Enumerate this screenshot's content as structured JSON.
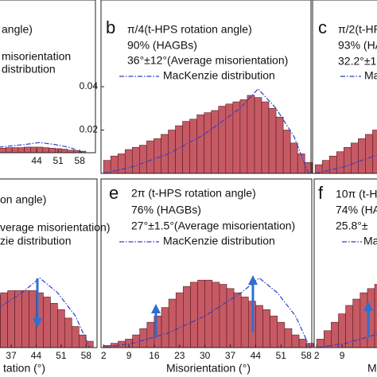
{
  "chart_data": [
    {
      "type": "histogram",
      "lines": [
        "angle)",
        "misorientation"
      ],
      "bins": [
        2,
        4,
        6,
        8,
        10,
        12,
        14,
        16,
        18,
        20,
        22,
        24,
        26,
        28,
        30,
        32,
        34,
        36,
        38,
        40,
        42,
        44,
        46,
        48,
        50,
        52,
        54,
        56,
        58,
        60
      ],
      "values": [
        0.002,
        0.002,
        0.003,
        0.003,
        0.004,
        0.004,
        0.005,
        0.005,
        0.006,
        0.006,
        0.007,
        0.007,
        0.008,
        0.008,
        0.009,
        0.009,
        0.01,
        0.01,
        0.01,
        0.011,
        0.011,
        0.011,
        0.01,
        0.009,
        0.008,
        0.007,
        0.005,
        0.004,
        0.003
      ],
      "color": "#c65a64",
      "xlim": [
        1.3,
        59.5
      ],
      "ylim": [
        0,
        0.3
      ],
      "xticks": [
        44,
        51,
        58
      ],
      "series": [
        {
          "name": "distribution",
          "color": "#2f3fc8",
          "x": [
            2,
            10,
            20,
            30,
            40,
            45,
            50,
            55,
            59
          ],
          "values": [
            0,
            0.002,
            0.005,
            0.01,
            0.016,
            0.02,
            0.016,
            0.01,
            0
          ]
        }
      ]
    },
    {
      "type": "histogram",
      "label": "b",
      "lines": [
        "π/4(t-HPS rotation angle)",
        "90% (HAGBs)",
        "36°±12°(Average misorientation)"
      ],
      "bins": [
        2,
        4,
        6,
        8,
        10,
        12,
        14,
        16,
        18,
        20,
        22,
        24,
        26,
        28,
        30,
        32,
        34,
        36,
        38,
        40,
        42,
        44,
        46,
        48,
        50,
        52,
        54,
        56,
        58,
        60
      ],
      "values": [
        0.006,
        0.008,
        0.009,
        0.011,
        0.012,
        0.013,
        0.015,
        0.016,
        0.018,
        0.02,
        0.022,
        0.024,
        0.025,
        0.027,
        0.028,
        0.029,
        0.031,
        0.032,
        0.033,
        0.034,
        0.036,
        0.035,
        0.033,
        0.03,
        0.026,
        0.02,
        0.014,
        0.009,
        0.005
      ],
      "color": "#c65a64",
      "xlim": [
        1.3,
        59.5
      ],
      "ylim": [
        0,
        0.08
      ],
      "yticks": [
        0.02,
        0.04
      ],
      "series": [
        {
          "name": "MacKenzie distribution",
          "color": "#2f3fc8",
          "x": [
            2,
            10,
            20,
            30,
            40,
            45,
            50,
            55,
            59
          ],
          "values": [
            0,
            0.003,
            0.009,
            0.018,
            0.03,
            0.039,
            0.03,
            0.017,
            0
          ]
        }
      ]
    },
    {
      "type": "histogram",
      "label": "c",
      "lines": [
        "π/2(t-HP",
        "93% (HA",
        "32.2°±1"
      ],
      "bins": [
        2,
        4,
        6,
        8,
        10,
        12,
        14,
        16,
        18,
        20,
        22,
        24,
        26,
        28,
        30,
        32,
        34,
        36,
        38,
        40,
        42,
        44,
        46,
        48,
        50,
        52,
        54,
        56,
        58,
        60
      ],
      "values": [
        0.004,
        0.006,
        0.008,
        0.01,
        0.012,
        0.014,
        0.016,
        0.018,
        0.02,
        0.022,
        0.024,
        0.025,
        0.026,
        0.027,
        0.028,
        0.028,
        0.027,
        0.026,
        0.025,
        0.024,
        0.022,
        0.02,
        0.018,
        0.015,
        0.012,
        0.009,
        0.006,
        0.004,
        0.002
      ],
      "color": "#c65a64",
      "xlim": [
        1.3,
        59.5
      ],
      "ylim": [
        0,
        0.08
      ],
      "series": [
        {
          "name": "Ma",
          "color": "#2f3fc8",
          "x": [
            2,
            10,
            20,
            30,
            40,
            45,
            50,
            55,
            59
          ],
          "values": [
            0,
            0.003,
            0.009,
            0.018,
            0.03,
            0.039,
            0.03,
            0.017,
            0
          ]
        }
      ]
    },
    {
      "type": "histogram",
      "lines": [
        "on angle)",
        "verage misorientation)"
      ],
      "xlabel": "tation (°)",
      "bins": [
        2,
        4,
        6,
        8,
        10,
        12,
        14,
        16,
        18,
        20,
        22,
        24,
        26,
        28,
        30,
        32,
        34,
        36,
        38,
        40,
        42,
        44,
        46,
        48,
        50,
        52,
        54,
        56,
        58,
        60
      ],
      "values": [
        0.003,
        0.005,
        0.007,
        0.009,
        0.011,
        0.013,
        0.015,
        0.017,
        0.018,
        0.019,
        0.02,
        0.021,
        0.022,
        0.023,
        0.024,
        0.025,
        0.026,
        0.027,
        0.027,
        0.027,
        0.027,
        0.026,
        0.024,
        0.021,
        0.018,
        0.014,
        0.01,
        0.006,
        0.003
      ],
      "color": "#c65a64",
      "xlim": [
        1.3,
        59.5
      ],
      "ylim": [
        0,
        0.08
      ],
      "xticks": [
        37,
        44,
        51,
        58
      ],
      "series": [
        {
          "name": "zie distribution",
          "color": "#2f3fc8",
          "x": [
            2,
            10,
            20,
            30,
            40,
            45,
            50,
            55,
            59
          ],
          "values": [
            0,
            0.002,
            0.007,
            0.015,
            0.026,
            0.033,
            0.026,
            0.015,
            0
          ]
        }
      ]
    },
    {
      "type": "histogram",
      "label": "e",
      "lines": [
        "2π (t-HPS rotation angle)",
        "76% (HAGBs)",
        "27°±1.5°(Average misorientation)"
      ],
      "xlabel": "Misorientation (°)",
      "bins": [
        2,
        4,
        6,
        8,
        10,
        12,
        14,
        16,
        18,
        20,
        22,
        24,
        26,
        28,
        30,
        32,
        34,
        36,
        38,
        40,
        42,
        44,
        46,
        48,
        50,
        52,
        54,
        56,
        58,
        60
      ],
      "values": [
        0.001,
        0.002,
        0.003,
        0.004,
        0.006,
        0.009,
        0.012,
        0.015,
        0.019,
        0.023,
        0.026,
        0.029,
        0.031,
        0.032,
        0.032,
        0.031,
        0.03,
        0.028,
        0.026,
        0.024,
        0.022,
        0.02,
        0.018,
        0.015,
        0.012,
        0.009,
        0.006,
        0.004,
        0.002
      ],
      "color": "#c65a64",
      "xlim": [
        1.3,
        59.5
      ],
      "ylim": [
        0,
        0.08
      ],
      "xticks": [
        2,
        9,
        16,
        23,
        30,
        37,
        44,
        51,
        58
      ],
      "series": [
        {
          "name": "MacKenzie distribution",
          "color": "#2f3fc8",
          "x": [
            2,
            10,
            20,
            30,
            40,
            45,
            50,
            55,
            59
          ],
          "values": [
            0,
            0.002,
            0.007,
            0.015,
            0.026,
            0.033,
            0.026,
            0.015,
            0
          ]
        }
      ]
    },
    {
      "type": "histogram",
      "label": "f",
      "lines": [
        "10π (t-H",
        "74% (HA",
        "25.8°±"
      ],
      "xlabel": "M",
      "bins": [
        2,
        4,
        6,
        8,
        10,
        12,
        14,
        16,
        18,
        20,
        22,
        24,
        26,
        28,
        30,
        32,
        34,
        36,
        38,
        40,
        42,
        44,
        46,
        48,
        50,
        52,
        54,
        56,
        58,
        60
      ],
      "values": [
        0.004,
        0.008,
        0.012,
        0.016,
        0.02,
        0.023,
        0.026,
        0.028,
        0.03,
        0.031,
        0.031,
        0.03,
        0.029,
        0.028,
        0.026,
        0.024,
        0.022,
        0.02,
        0.018,
        0.016,
        0.014,
        0.012,
        0.01,
        0.008,
        0.006,
        0.005,
        0.004,
        0.003,
        0.002
      ],
      "color": "#c65a64",
      "xlim": [
        1.3,
        59.5
      ],
      "ylim": [
        0,
        0.08
      ],
      "xticks": [
        2,
        9
      ],
      "series": [
        {
          "name": "Ma",
          "color": "#2f3fc8",
          "x": [
            2,
            10,
            20,
            30,
            40,
            45,
            50,
            55,
            59
          ],
          "values": [
            0,
            0.002,
            0.007,
            0.015,
            0.026,
            0.033,
            0.026,
            0.015,
            0
          ]
        }
      ]
    }
  ]
}
